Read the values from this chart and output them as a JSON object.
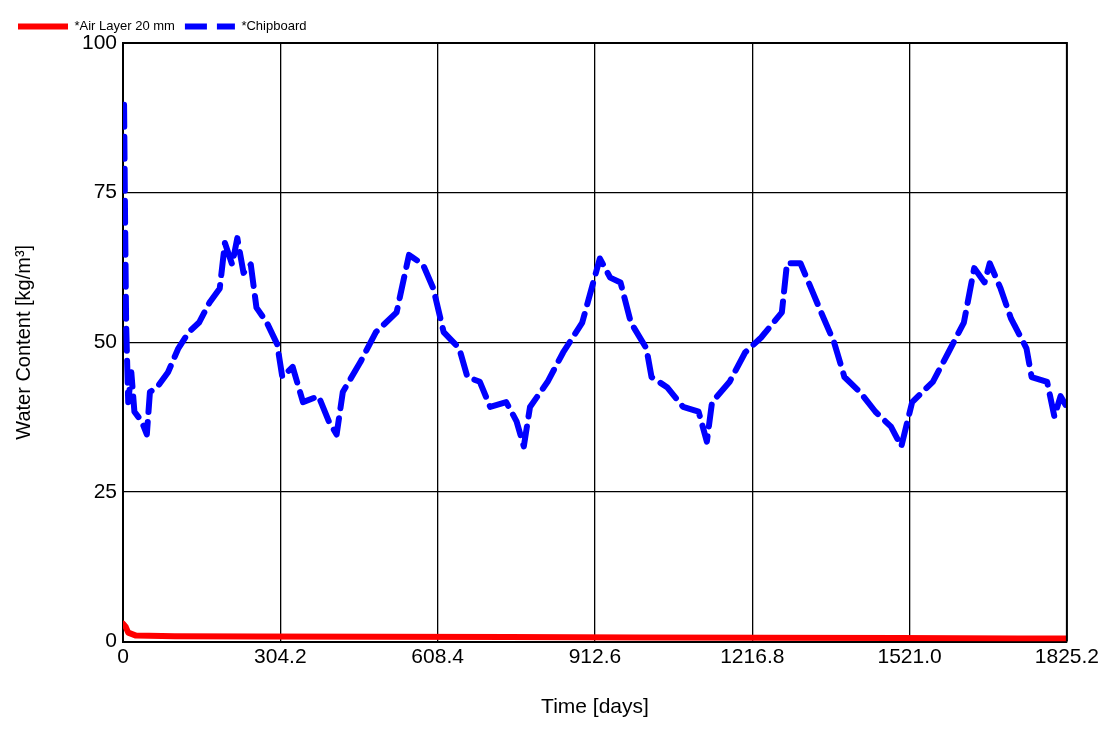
{
  "chart_data": {
    "type": "line",
    "xlabel": "Time [days]",
    "ylabel": "Water Content [kg/m³]",
    "xlim": [
      0,
      1825.2
    ],
    "xticks": [
      0,
      304.2,
      608.4,
      912.6,
      1216.8,
      {
        "value": 1521,
        "label": "1521.0"
      },
      1825.2
    ],
    "ylim": [
      0,
      100
    ],
    "yticks": [
      0,
      25,
      50,
      75,
      100
    ],
    "grid": true,
    "legend": "top left",
    "marker": "none",
    "series": [
      {
        "name": "*Air Layer 20 mm",
        "color": "#ff0000",
        "line_style": "solid",
        "x": [
          0,
          5,
          10,
          25,
          100,
          500,
          1000,
          1500,
          1825
        ],
        "values": [
          3,
          2.5,
          1.5,
          1,
          0.9,
          0.8,
          0.7,
          0.6,
          0.5
        ]
      },
      {
        "name": "*Chipboard",
        "color": "#0000ff",
        "line_style": "dashed",
        "x": [
          2,
          4,
          6,
          10,
          16,
          22,
          36,
          46,
          52,
          66,
          87,
          107,
          127,
          147,
          167,
          187,
          197,
          211,
          221,
          233,
          247,
          258,
          278,
          298,
          308,
          328,
          348,
          378,
          398,
          413,
          425,
          459,
          489,
          529,
          553,
          580,
          600,
          620,
          650,
          666,
          690,
          710,
          741,
          761,
          775,
          787,
          821,
          851,
          888,
          922,
          942,
          962,
          982,
          1012,
          1022,
          1052,
          1083,
          1113,
          1129,
          1139,
          1173,
          1203,
          1234,
          1274,
          1284,
          1310,
          1334,
          1350,
          1375,
          1395,
          1425,
          1455,
          1485,
          1505,
          1526,
          1566,
          1596,
          1626,
          1646,
          1666,
          1676,
          1697,
          1717,
          1747,
          1757,
          1787,
          1801,
          1813,
          1825
        ],
        "values": [
          89.7,
          70,
          53,
          40,
          45,
          38.4,
          36.8,
          34.6,
          41.7,
          42.5,
          45,
          49,
          51.7,
          53.3,
          56.6,
          59,
          66.6,
          63,
          67.4,
          61.6,
          63,
          55.8,
          53.3,
          49.7,
          44.2,
          45.9,
          40,
          41,
          36.8,
          34.6,
          41.7,
          46.7,
          51.7,
          55,
          64.6,
          63,
          59,
          51.7,
          49,
          44.2,
          43.4,
          39.2,
          40,
          36.8,
          32.6,
          39.2,
          43.4,
          48.3,
          53.3,
          64,
          60.8,
          60,
          53.3,
          49,
          44.2,
          42.5,
          39.2,
          38.4,
          33.4,
          40,
          43.4,
          48.3,
          50.8,
          55,
          63.2,
          63.2,
          58.3,
          55,
          50,
          44.2,
          41.7,
          38.4,
          35.9,
          32.6,
          40,
          43.4,
          48.3,
          53.3,
          62.4,
          60,
          63.2,
          59,
          54,
          49,
          44.2,
          43.4,
          37.6,
          41,
          39.2
        ]
      }
    ]
  }
}
